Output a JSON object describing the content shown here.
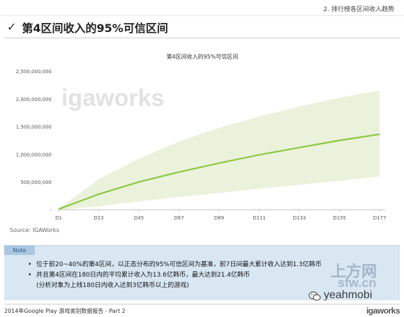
{
  "header": {
    "section_title": "2. 排行榜各区间收入趋势",
    "page_title": "第4区间收入的95%可信区间",
    "check_icon": "check-icon"
  },
  "chart_data": {
    "type": "area",
    "title": "第4区间收入的95%可信区间",
    "watermark": "igaworks",
    "x_labels": [
      "D1",
      "D23",
      "D45",
      "D67",
      "D89",
      "D111",
      "D133",
      "D155",
      "D177"
    ],
    "x": [
      1,
      23,
      45,
      67,
      89,
      111,
      133,
      155,
      177
    ],
    "xlim": [
      1,
      180
    ],
    "y_ticks": [
      "-",
      "500,000,000",
      "1,000,000,000",
      "1,500,000,000",
      "2,000,000,000",
      "2,500,000,000"
    ],
    "ylim": [
      0,
      2500000000
    ],
    "grid": false,
    "series": [
      {
        "role": "upper",
        "values": [
          20000000,
          550000000,
          920000000,
          1230000000,
          1480000000,
          1680000000,
          1860000000,
          2020000000,
          2150000000
        ]
      },
      {
        "role": "mean",
        "values": [
          10000000,
          280000000,
          500000000,
          680000000,
          840000000,
          990000000,
          1120000000,
          1250000000,
          1360000000
        ]
      },
      {
        "role": "lower",
        "values": [
          0,
          60000000,
          150000000,
          230000000,
          300000000,
          380000000,
          450000000,
          520000000,
          600000000
        ]
      }
    ],
    "colors": {
      "band": "#eaf2dc",
      "line": "#8dc63f",
      "axis": "#bfbfbf"
    }
  },
  "source": "Source: IGAWorks",
  "note": {
    "label": "Note",
    "items": [
      "位于前20~40%的第4区间，以正态分布的95%可信区间为基准，前7日间最大累计收入达到1.3亿韩币",
      "并且第4区间在180日内的平均累计收入为13.6亿韩币，最大达到21.4亿韩币",
      "(分析对象为上线180日内收入达到3亿韩币以上的游戏)"
    ]
  },
  "footer": {
    "left": "2014年Google Play 游戏类别数据报告 - Part 2",
    "brand": "igaworks"
  },
  "watermarks": {
    "shangfang": "上方网",
    "sfw": "sfw.cn",
    "yeahmobi": "yeahmobi"
  }
}
